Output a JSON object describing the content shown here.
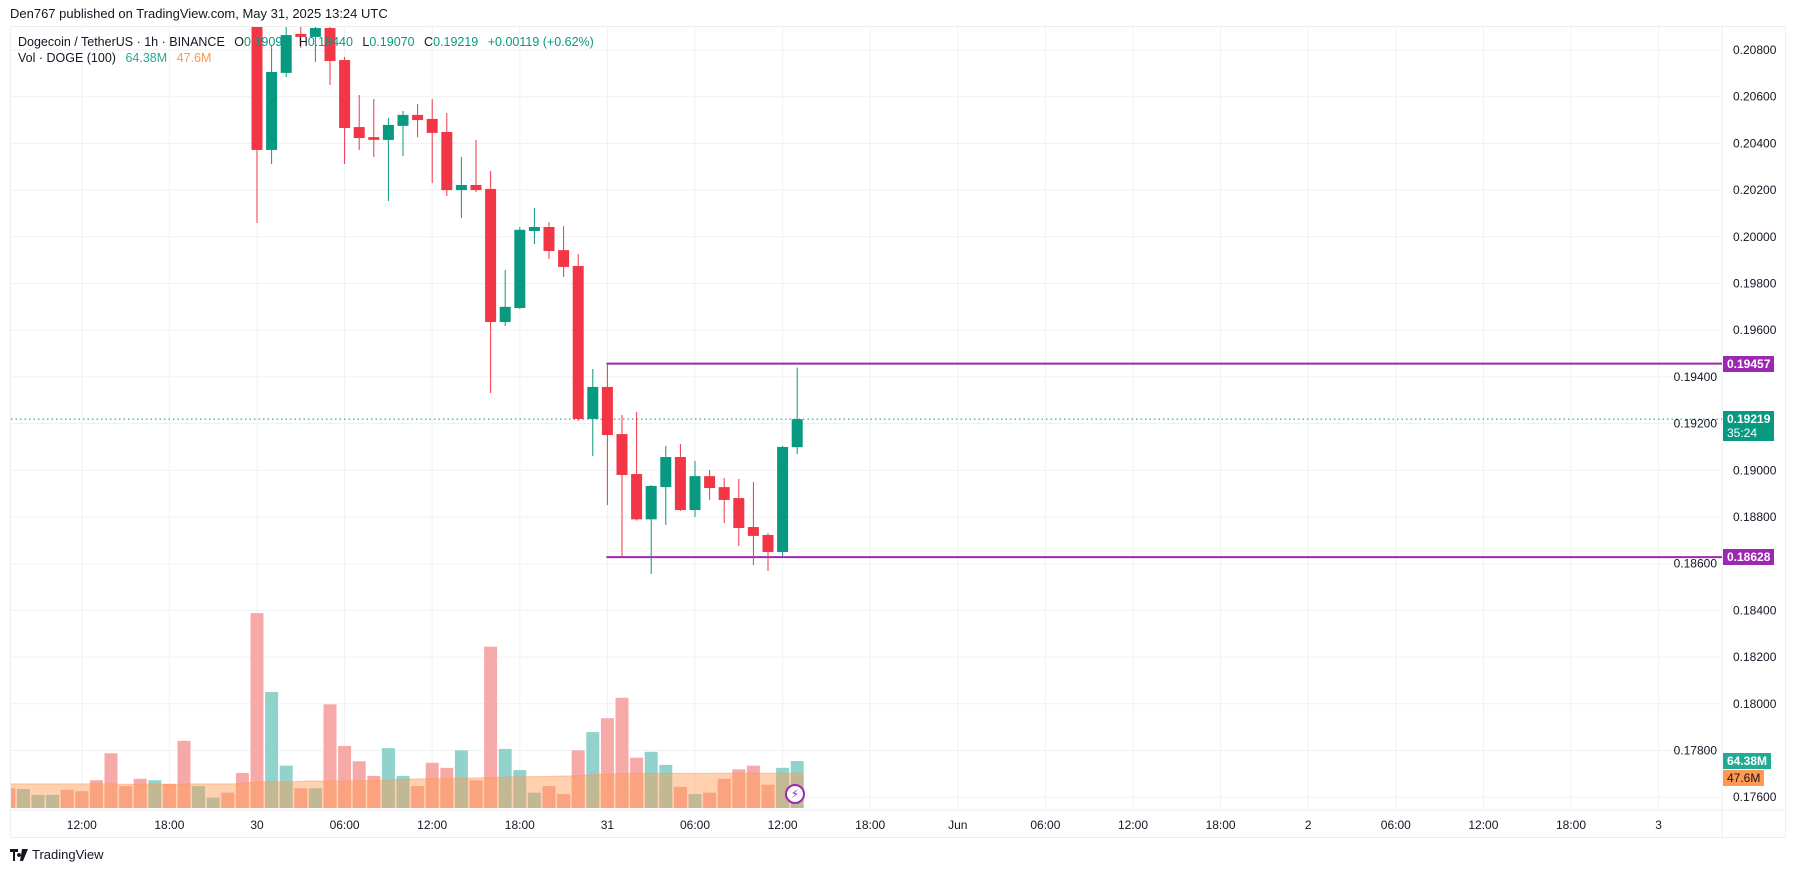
{
  "header": {
    "published": "Den767 published on TradingView.com, May 31, 2025 13:24 UTC"
  },
  "legend": {
    "symbol": "Dogecoin / TetherUS · 1h · BINANCE",
    "o_label": "O",
    "o_value": "0.19099",
    "h_label": "H",
    "h_value": "0.19440",
    "l_label": "L",
    "l_value": "0.19070",
    "c_label": "C",
    "c_value": "0.19219",
    "change": "+0.00119 (+0.62%)",
    "vol_label": "Vol · DOGE (100)",
    "vol_value": "64.38M",
    "vol_ma_value": "47.6M"
  },
  "tags": {
    "resistance": "0.19457",
    "last_price": "0.19219",
    "countdown": "35:24",
    "support": "0.18628",
    "volume": "64.38M",
    "volume_ma": "47.6M"
  },
  "footer": {
    "brand": "TradingView"
  },
  "colors": {
    "up": "#089981",
    "down": "#f23645",
    "vol_up": "#92d2cc",
    "vol_down": "#f7a9a7",
    "ma": "#ff9850",
    "level": "#9c27b0",
    "grid": "#f0f1f3"
  },
  "icons": {
    "alert": "lightning-icon",
    "logo": "tradingview-logo-icon"
  },
  "chart_data": {
    "type": "candlestick",
    "title": "Dogecoin / TetherUS · 1h · BINANCE",
    "timeframe": "1h",
    "start_time": "2025-05-29 07:00",
    "ylim": [
      0.176,
      0.208
    ],
    "y_ticks": [
      "0.20800",
      "0.20600",
      "0.20400",
      "0.20200",
      "0.20000",
      "0.19800",
      "0.19600",
      "0.19400",
      "0.19200",
      "0.19000",
      "0.18800",
      "0.18600",
      "0.18400",
      "0.18200",
      "0.18000",
      "0.17800",
      "0.17600"
    ],
    "x_ticks": [
      {
        "label": "12:00",
        "hour": 5
      },
      {
        "label": "18:00",
        "hour": 11
      },
      {
        "label": "30",
        "hour": 17
      },
      {
        "label": "06:00",
        "hour": 23
      },
      {
        "label": "12:00",
        "hour": 29
      },
      {
        "label": "18:00",
        "hour": 35
      },
      {
        "label": "31",
        "hour": 41
      },
      {
        "label": "06:00",
        "hour": 47
      },
      {
        "label": "12:00",
        "hour": 53
      },
      {
        "label": "18:00",
        "hour": 59
      },
      {
        "label": "Jun",
        "hour": 65
      },
      {
        "label": "06:00",
        "hour": 71
      },
      {
        "label": "12:00",
        "hour": 77
      },
      {
        "label": "18:00",
        "hour": 83
      },
      {
        "label": "2",
        "hour": 89
      },
      {
        "label": "06:00",
        "hour": 95
      },
      {
        "label": "12:00",
        "hour": 101
      },
      {
        "label": "18:00",
        "hour": 107
      },
      {
        "label": "3",
        "hour": 113
      }
    ],
    "ohlc_start_hour": 17,
    "ohlc": [
      [
        0.2095,
        0.21,
        0.20059,
        0.20372
      ],
      [
        0.20372,
        0.20821,
        0.20312,
        0.20706
      ],
      [
        0.20702,
        0.2092,
        0.20684,
        0.20864
      ],
      [
        0.20869,
        0.2092,
        0.20809,
        0.20856
      ],
      [
        0.20856,
        0.2093,
        0.20749,
        0.20894
      ],
      [
        0.20894,
        0.2093,
        0.2065,
        0.20753
      ],
      [
        0.20757,
        0.2077,
        0.20312,
        0.20466
      ],
      [
        0.2047,
        0.20607,
        0.20372,
        0.20423
      ],
      [
        0.20427,
        0.2059,
        0.20342,
        0.20415
      ],
      [
        0.20415,
        0.20509,
        0.20153,
        0.20479
      ],
      [
        0.20475,
        0.20539,
        0.20346,
        0.20522
      ],
      [
        0.20522,
        0.20569,
        0.20427,
        0.205
      ],
      [
        0.20505,
        0.2059,
        0.2023,
        0.20445
      ],
      [
        0.20449,
        0.2053,
        0.20175,
        0.202
      ],
      [
        0.202,
        0.20342,
        0.2008,
        0.20222
      ],
      [
        0.20222,
        0.20415,
        0.20192,
        0.202
      ],
      [
        0.20205,
        0.20282,
        0.19331,
        0.19635
      ],
      [
        0.19635,
        0.19858,
        0.19618,
        0.197
      ],
      [
        0.19695,
        0.20042,
        0.19691,
        0.2003
      ],
      [
        0.20025,
        0.20123,
        0.19969,
        0.20042
      ],
      [
        0.20042,
        0.20063,
        0.19905,
        0.19939
      ],
      [
        0.19943,
        0.20046,
        0.19828,
        0.19871
      ],
      [
        0.19875,
        0.19926,
        0.19211,
        0.1922
      ],
      [
        0.1922,
        0.19434,
        0.19061,
        0.19357
      ],
      [
        0.19357,
        0.19457,
        0.18851,
        0.19151
      ],
      [
        0.19155,
        0.19237,
        0.18628,
        0.1898
      ],
      [
        0.18984,
        0.1925,
        0.18785,
        0.1879
      ],
      [
        0.1879,
        0.18937,
        0.18556,
        0.18933
      ],
      [
        0.18928,
        0.19104,
        0.18766,
        0.19057
      ],
      [
        0.19057,
        0.19113,
        0.18826,
        0.1883
      ],
      [
        0.1883,
        0.1904,
        0.188,
        0.18975
      ],
      [
        0.18975,
        0.19001,
        0.18873,
        0.18924
      ],
      [
        0.18928,
        0.18967,
        0.18774,
        0.18873
      ],
      [
        0.18881,
        0.18963,
        0.18676,
        0.18753
      ],
      [
        0.18757,
        0.1895,
        0.18594,
        0.18719
      ],
      [
        0.18723,
        0.18731,
        0.18569,
        0.1865
      ],
      [
        0.1865,
        0.19104,
        0.18633,
        0.191
      ],
      [
        0.19099,
        0.1944,
        0.1907,
        0.19219
      ]
    ],
    "volume_unit": "M",
    "volume": [
      27,
      26,
      18,
      18,
      25,
      23,
      38,
      75,
      30,
      40,
      38,
      33,
      92,
      30,
      14,
      21,
      48,
      267,
      159,
      58,
      27,
      27,
      142,
      85,
      64,
      44,
      82,
      44,
      30,
      62,
      55,
      79,
      38,
      221,
      81,
      52,
      21,
      30,
      19,
      79,
      104,
      123,
      151,
      69,
      77,
      59,
      29,
      19,
      21,
      40,
      53,
      58,
      32,
      55,
      64.38
    ],
    "volume_dir": [
      "d",
      "u",
      "u",
      "u",
      "d",
      "d",
      "d",
      "d",
      "d",
      "d",
      "u",
      "d",
      "d",
      "u",
      "u",
      "d",
      "d",
      "d",
      "u",
      "u",
      "d",
      "u",
      "d",
      "d",
      "d",
      "d",
      "u",
      "u",
      "d",
      "d",
      "d",
      "u",
      "d",
      "d",
      "u",
      "u",
      "u",
      "d",
      "d",
      "d",
      "u",
      "d",
      "d",
      "d",
      "u",
      "u",
      "d",
      "u",
      "d",
      "d",
      "d",
      "d",
      "d",
      "u",
      "u"
    ],
    "volume_ma": [
      33,
      33,
      33,
      33,
      33,
      33,
      33,
      33,
      32.5,
      32.5,
      32.5,
      32.5,
      32.5,
      33,
      33,
      33,
      33,
      35,
      36,
      36,
      36,
      37,
      37,
      37,
      37,
      37.5,
      38,
      39,
      39.5,
      40,
      40,
      40.5,
      41,
      41.5,
      42,
      42.5,
      43,
      43,
      43.5,
      44,
      45,
      46,
      47,
      47.5,
      47.5,
      47.5,
      47.5,
      47.5,
      47.5,
      47.6,
      47.6,
      47.6,
      47.6,
      47.6,
      47.6
    ],
    "levels": [
      {
        "name": "resistance",
        "price": 0.19457,
        "from_hour": 41
      },
      {
        "name": "support",
        "price": 0.18628,
        "from_hour": 41
      }
    ],
    "last_price": 0.19219
  }
}
